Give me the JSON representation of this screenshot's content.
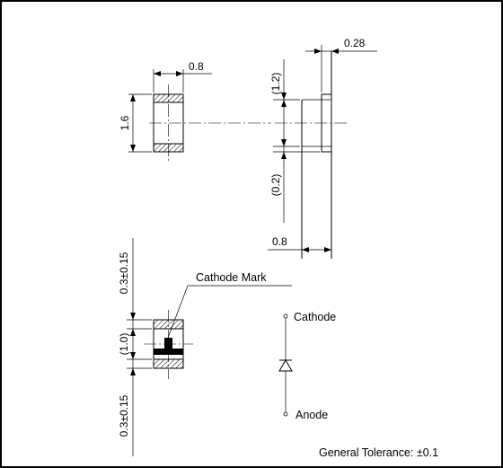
{
  "top_view": {
    "width": "0.8",
    "height": "1.6"
  },
  "side_view": {
    "thickness": "0.28",
    "upper_ref": "(1.2)",
    "lower_ref": "(0.2)",
    "length": "0.8"
  },
  "bottom_view": {
    "top_margin": "0.3±0.15",
    "middle": "(1.0)",
    "bottom_margin": "0.3±0.15",
    "cathode_mark": "Cathode Mark"
  },
  "symbol": {
    "cathode": "Cathode",
    "anode": "Anode"
  },
  "tolerance": "General  Tolerance: ±0.1"
}
